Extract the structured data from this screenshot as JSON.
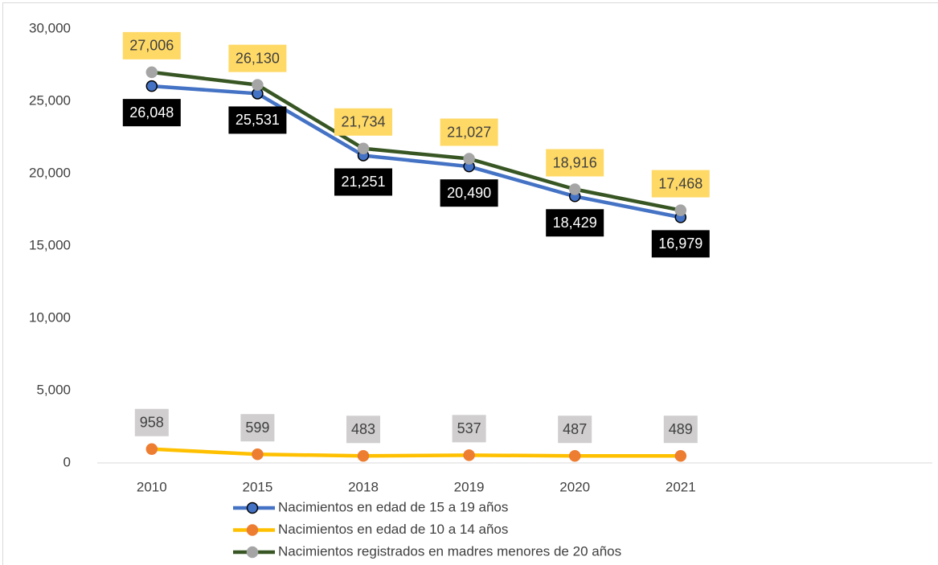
{
  "chart_data": {
    "type": "line",
    "categories": [
      "2010",
      "2015",
      "2018",
      "2019",
      "2020",
      "2021"
    ],
    "ylim": [
      0,
      30000
    ],
    "yticks": [
      0,
      {
        "value": 5000,
        "label": "5,000"
      },
      {
        "value": 10000,
        "label": "10,000"
      },
      {
        "value": 15000,
        "label": "15,000"
      },
      {
        "value": 20000,
        "label": "20,000"
      },
      {
        "value": 25000,
        "label": "25,000"
      },
      {
        "value": 30000,
        "label": "30,000"
      }
    ],
    "series": [
      {
        "name": "Nacimientos en edad de 15 a 19 años",
        "color": "#4472c4",
        "marker_color": "#4472c4",
        "label_background": "#000000",
        "label_color": "#ffffff",
        "label_position": "below",
        "values": [
          26048,
          25531,
          21251,
          20490,
          18429,
          16979
        ],
        "value_labels": [
          "26,048",
          "25,531",
          "21,251",
          "20,490",
          "18,429",
          "16,979"
        ]
      },
      {
        "name": "Nacimientos en edad de 10 a 14 años",
        "color": "#ffc000",
        "marker_color": "#ed7d31",
        "label_background": "#d0cece",
        "label_color": "#404040",
        "label_position": "above",
        "values": [
          958,
          599,
          483,
          537,
          487,
          489
        ],
        "value_labels": [
          "958",
          "599",
          "483",
          "537",
          "487",
          "489"
        ]
      },
      {
        "name": "Nacimientos registrados en madres menores de 20 años",
        "color": "#375623",
        "marker_color": "#a5a5a5",
        "label_background": "#ffd966",
        "label_color": "#404040",
        "label_position": "above",
        "values": [
          27006,
          26130,
          21734,
          21027,
          18916,
          17468
        ],
        "value_labels": [
          "27,006",
          "26,130",
          "21,734",
          "21,027",
          "18,916",
          "17,468"
        ]
      }
    ]
  }
}
